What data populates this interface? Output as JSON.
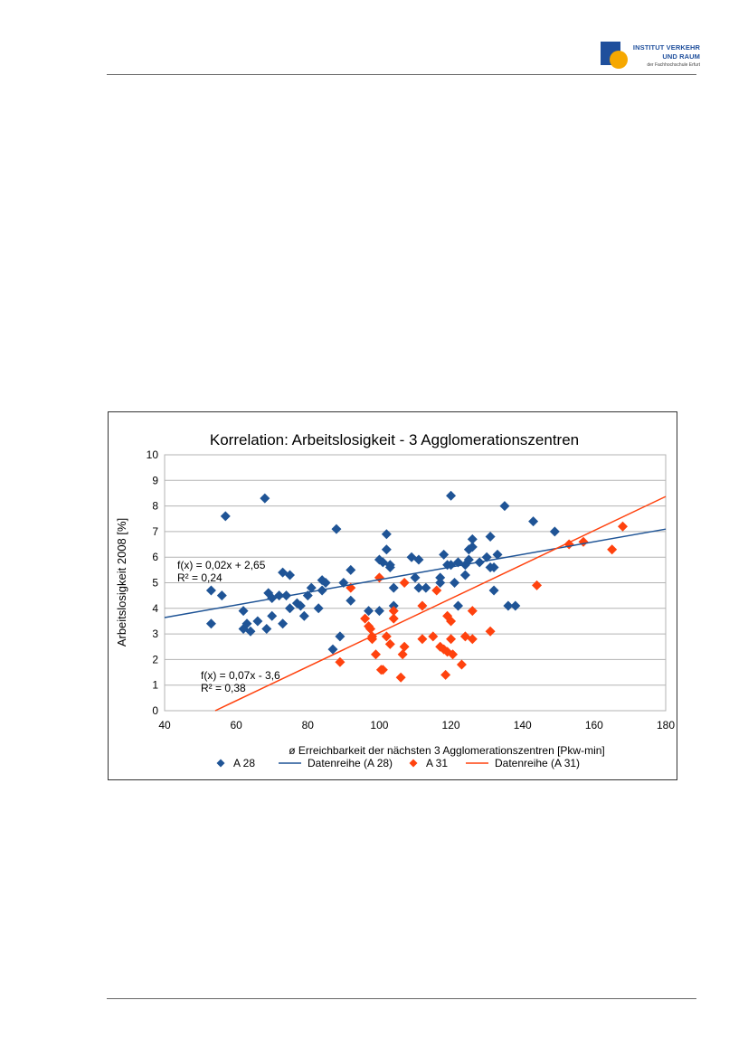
{
  "header": {
    "logo_line1": "INSTITUT VERKEHR",
    "logo_line2": "UND RAUM",
    "logo_line3": "der Fachhochschule Erfurt",
    "colors": {
      "logo_blue": "#1f4f9c",
      "logo_orange": "#f6a800"
    }
  },
  "chart_data": {
    "type": "scatter",
    "title": "Korrelation: Arbeitslosigkeit - 3 Agglomerationszentren",
    "xlabel": "ø Erreichbarkeit der nächsten 3 Agglomerationszentren [Pkw-min]",
    "ylabel": "Arbeitslosigkeit 2008 [%]",
    "xlim": [
      40,
      180
    ],
    "ylim": [
      0,
      10
    ],
    "x_ticks": [
      "40",
      "60",
      "80",
      "100",
      "120",
      "140",
      "160",
      "180"
    ],
    "y_ticks": [
      "0",
      "1",
      "2",
      "3",
      "4",
      "5",
      "6",
      "7",
      "8",
      "9",
      "10"
    ],
    "grid": "horizontal",
    "legend_position": "bottom",
    "series": [
      {
        "name": "A 28",
        "color": "#1f5496",
        "marker": "diamond",
        "points": [
          [
            53,
            4.7
          ],
          [
            53,
            3.4
          ],
          [
            56,
            4.5
          ],
          [
            57,
            7.6
          ],
          [
            62,
            3.2
          ],
          [
            62,
            3.9
          ],
          [
            63,
            3.4
          ],
          [
            64,
            3.1
          ],
          [
            66,
            3.5
          ],
          [
            68,
            8.3
          ],
          [
            68.5,
            3.2
          ],
          [
            69,
            4.6
          ],
          [
            70,
            3.7
          ],
          [
            70,
            4.4
          ],
          [
            72,
            4.5
          ],
          [
            73,
            3.4
          ],
          [
            73,
            5.4
          ],
          [
            74,
            4.5
          ],
          [
            75,
            4.0
          ],
          [
            75,
            5.3
          ],
          [
            77,
            4.2
          ],
          [
            78,
            4.1
          ],
          [
            79,
            3.7
          ],
          [
            80,
            4.5
          ],
          [
            81,
            4.8
          ],
          [
            83,
            4.0
          ],
          [
            84,
            4.7
          ],
          [
            84,
            5.1
          ],
          [
            85,
            5.0
          ],
          [
            87,
            2.4
          ],
          [
            88,
            7.1
          ],
          [
            89,
            2.9
          ],
          [
            90,
            5.0
          ],
          [
            92,
            5.5
          ],
          [
            92,
            4.3
          ],
          [
            97,
            3.9
          ],
          [
            100,
            3.9
          ],
          [
            100,
            5.9
          ],
          [
            101,
            5.8
          ],
          [
            102,
            6.9
          ],
          [
            102,
            6.3
          ],
          [
            103,
            5.7
          ],
          [
            103,
            5.6
          ],
          [
            104,
            4.8
          ],
          [
            104,
            4.1
          ],
          [
            109,
            6.0
          ],
          [
            110,
            5.2
          ],
          [
            111,
            5.9
          ],
          [
            111,
            4.8
          ],
          [
            113,
            4.8
          ],
          [
            117,
            5.2
          ],
          [
            117,
            5.0
          ],
          [
            118,
            6.1
          ],
          [
            119,
            5.7
          ],
          [
            120,
            5.7
          ],
          [
            120,
            8.4
          ],
          [
            121,
            5.0
          ],
          [
            122,
            4.1
          ],
          [
            122,
            5.8
          ],
          [
            124,
            5.7
          ],
          [
            124,
            5.3
          ],
          [
            125,
            6.3
          ],
          [
            125,
            5.9
          ],
          [
            126,
            6.7
          ],
          [
            126,
            6.4
          ],
          [
            128,
            5.8
          ],
          [
            130,
            6.0
          ],
          [
            131,
            6.8
          ],
          [
            131,
            5.6
          ],
          [
            132,
            5.6
          ],
          [
            132,
            4.7
          ],
          [
            133,
            6.1
          ],
          [
            135,
            8.0
          ],
          [
            136,
            4.1
          ],
          [
            138,
            4.1
          ],
          [
            143,
            7.4
          ],
          [
            149,
            7.0
          ]
        ]
      },
      {
        "name": "Datenreihe (A 28)",
        "color": "#1f5496",
        "type": "trendline",
        "equation": "f(x) = 0,02x + 2,65",
        "r2": "R² = 0,24",
        "slope": 0.0247,
        "intercept": 2.65
      },
      {
        "name": "A 31",
        "color": "#ff420e",
        "marker": "diamond",
        "points": [
          [
            89,
            1.9
          ],
          [
            92,
            4.8
          ],
          [
            96,
            3.6
          ],
          [
            97,
            3.3
          ],
          [
            97.5,
            3.2
          ],
          [
            98,
            2.9
          ],
          [
            98,
            2.8
          ],
          [
            99,
            2.2
          ],
          [
            100,
            5.2
          ],
          [
            100.5,
            1.6
          ],
          [
            101,
            1.6
          ],
          [
            102,
            2.9
          ],
          [
            103,
            2.6
          ],
          [
            104,
            3.9
          ],
          [
            104,
            3.6
          ],
          [
            106,
            1.3
          ],
          [
            106.5,
            2.2
          ],
          [
            107,
            2.5
          ],
          [
            107,
            5.0
          ],
          [
            112,
            2.8
          ],
          [
            112,
            4.1
          ],
          [
            115,
            2.9
          ],
          [
            116,
            4.7
          ],
          [
            117,
            2.5
          ],
          [
            118,
            2.4
          ],
          [
            118.5,
            1.4
          ],
          [
            119,
            3.7
          ],
          [
            119,
            2.3
          ],
          [
            120,
            2.8
          ],
          [
            120,
            3.5
          ],
          [
            120.5,
            2.2
          ],
          [
            123,
            1.8
          ],
          [
            124,
            2.9
          ],
          [
            126,
            2.8
          ],
          [
            126,
            3.9
          ],
          [
            131,
            3.1
          ],
          [
            144,
            4.9
          ],
          [
            153,
            6.5
          ],
          [
            157,
            6.6
          ],
          [
            165,
            6.3
          ],
          [
            168,
            7.2
          ]
        ]
      },
      {
        "name": "Datenreihe (A 31)",
        "color": "#ff420e",
        "type": "trendline",
        "equation": "f(x) = 0,07x - 3,6",
        "r2": "R² = 0,38",
        "slope": 0.0665,
        "intercept": -3.6
      }
    ]
  }
}
